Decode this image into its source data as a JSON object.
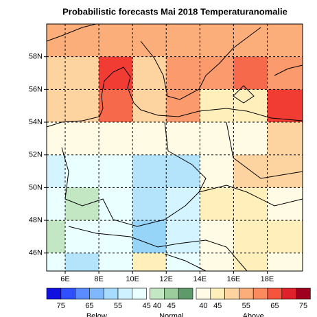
{
  "chart_data": {
    "type": "gridmap",
    "title": "Probabilistic forecasts Mai 2018 Temperaturanomalie",
    "xlim": [
      4.9,
      20.1
    ],
    "ylim": [
      44.9,
      60
    ],
    "xticks": [
      {
        "value": 6,
        "label": "6E"
      },
      {
        "value": 8,
        "label": "8E"
      },
      {
        "value": 10,
        "label": "10E"
      },
      {
        "value": 12,
        "label": "12E"
      },
      {
        "value": 14,
        "label": "14E"
      },
      {
        "value": 16,
        "label": "16E"
      },
      {
        "value": 18,
        "label": "18E"
      }
    ],
    "yticks": [
      {
        "value": 46,
        "label": "46N"
      },
      {
        "value": 48,
        "label": "48N"
      },
      {
        "value": 50,
        "label": "50N"
      },
      {
        "value": 52,
        "label": "52N"
      },
      {
        "value": 54,
        "label": "54N"
      },
      {
        "value": 56,
        "label": "56N"
      },
      {
        "value": 58,
        "label": "58N"
      }
    ],
    "grid": true,
    "cells": [
      [
        "#fcae7a",
        "#fcae7a",
        "#fcae7a",
        "#fcae7a",
        "#fcae7a",
        "#fcae7a",
        "#fcae7a",
        "#fcae7a"
      ],
      [
        "#fdd3a0",
        "#fdd3a0",
        "#f03c32",
        "#fdd3a0",
        "#fb9a6c",
        "#fb9a6c",
        "#f6694a",
        "#fb9a6c"
      ],
      [
        "#fdd3a0",
        "#fdd3a0",
        "#f6694a",
        "#fdd3a0",
        "#fb9a6c",
        "#fff0bb",
        "#fff0bb",
        "#f03c32"
      ],
      [
        "#fffbe4",
        "#fffbe4",
        "#fffbe4",
        "#fffbe4",
        "#fffbe4",
        "#fffbe4",
        "#fffbe4",
        "#fdd3a0"
      ],
      [
        "#d4f4ff",
        "#eaffff",
        "#eaffff",
        "#b4e4fb",
        "#b4e4fb",
        "#fffbe4",
        "#fdd3a0",
        "#fdd3a0"
      ],
      [
        "#eaffff",
        "#c3e6c3",
        "#eaffff",
        "#b4e4fb",
        "#d4f4ff",
        "#fff0bb",
        "#fff0bb",
        "#fffbe4"
      ],
      [
        "#c3e6c3",
        "#eaffff",
        "#eaffff",
        "#96d4f8",
        "#d4f4ff",
        "#fffbe4",
        "#fff0bb",
        "#fff0bb"
      ],
      [
        "#eaffff",
        "#b4e4fb",
        "#eaffff",
        "#fff0bb",
        "#eaffff",
        "#fffbe4",
        "#fff0bb",
        "#fffbe4"
      ]
    ],
    "legend": [
      {
        "name": "Below",
        "colors": [
          "#1010e0",
          "#3050ff",
          "#5a8cff",
          "#80b8ff",
          "#a8dcff",
          "#cef2ff",
          "#eaffff"
        ],
        "ticks": [
          75,
          65,
          55,
          45
        ]
      },
      {
        "name": "Normal",
        "colors": [
          "#c3e6c3",
          "#9ccc9c",
          "#5f9a6a"
        ],
        "ticks": [
          40,
          45
        ]
      },
      {
        "name": "Above",
        "colors": [
          "#fffbe4",
          "#fff0bb",
          "#fdd3a0",
          "#fcae7a",
          "#fb8a5e",
          "#f6543c",
          "#e0202a",
          "#a00020"
        ],
        "ticks": [
          40,
          45,
          55,
          65,
          75
        ]
      }
    ]
  }
}
